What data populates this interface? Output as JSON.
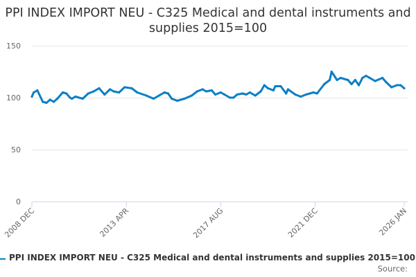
{
  "title": "PPI INDEX IMPORT NEU - C325 Medical and dental instruments and supplies 2015=100",
  "source_label": "Source:",
  "colors": {
    "series": "#0a7fc6",
    "grid": "#e6e6e6",
    "axis_text": "#666666"
  },
  "chart_data": {
    "type": "line",
    "title": "PPI INDEX IMPORT NEU - C325 Medical and dental instruments and supplies 2015=100",
    "xlabel": "",
    "ylabel": "",
    "ylim": [
      0,
      150
    ],
    "xlim": [
      "2008-12",
      "2026-01"
    ],
    "yticks": [
      0,
      50,
      100,
      150
    ],
    "xticks": [
      {
        "date": "2008-12",
        "label": "2008 DEC"
      },
      {
        "date": "2013-04",
        "label": "2013 APR"
      },
      {
        "date": "2017-08",
        "label": "2017 AUG"
      },
      {
        "date": "2021-12",
        "label": "2021 DEC"
      },
      {
        "date": "2026-01",
        "label": "2026 JAN"
      }
    ],
    "grid": "horizontal",
    "legend": "bottom",
    "series": [
      {
        "name": "PPI INDEX IMPORT NEU - C325 Medical and dental instruments and supplies 2015=100",
        "x": [
          "2008-12",
          "2009-01",
          "2009-03",
          "2009-06",
          "2009-08",
          "2009-10",
          "2009-12",
          "2010-02",
          "2010-05",
          "2010-07",
          "2010-09",
          "2010-10",
          "2010-12",
          "2011-04",
          "2011-07",
          "2011-10",
          "2012-01",
          "2012-04",
          "2012-07",
          "2012-09",
          "2012-12",
          "2013-03",
          "2013-07",
          "2013-10",
          "2014-03",
          "2014-07",
          "2014-10",
          "2015-01",
          "2015-03",
          "2015-05",
          "2015-08",
          "2015-12",
          "2016-04",
          "2016-07",
          "2016-10",
          "2016-12",
          "2017-03",
          "2017-05",
          "2017-08",
          "2017-10",
          "2018-01",
          "2018-03",
          "2018-05",
          "2018-08",
          "2018-10",
          "2018-12",
          "2019-03",
          "2019-06",
          "2019-08",
          "2019-10",
          "2020-01",
          "2020-02",
          "2020-05",
          "2020-08",
          "2020-09",
          "2021-01",
          "2021-04",
          "2021-07",
          "2021-11",
          "2022-01",
          "2022-05",
          "2022-08",
          "2022-09",
          "2022-12",
          "2023-02",
          "2023-06",
          "2023-08",
          "2023-10",
          "2023-12",
          "2024-02",
          "2024-04",
          "2024-06",
          "2024-09",
          "2025-01",
          "2025-03",
          "2025-06",
          "2025-09",
          "2025-11",
          "2026-01"
        ],
        "y": [
          101,
          105,
          107,
          96,
          95,
          98,
          96,
          99,
          105,
          104,
          100,
          99,
          101,
          99,
          104,
          106,
          109,
          103,
          108,
          106,
          105,
          110,
          109,
          105,
          102,
          99,
          102,
          105,
          104,
          99,
          97,
          99,
          102,
          106,
          108,
          106,
          107,
          103,
          105,
          103,
          100,
          100,
          103,
          104,
          103,
          105,
          102,
          106,
          112,
          109,
          107,
          111,
          111,
          104,
          108,
          103,
          101,
          103,
          105,
          104,
          113,
          117,
          125,
          117,
          119,
          117,
          113,
          117,
          112,
          119,
          121,
          119,
          116,
          119,
          115,
          110,
          112,
          112,
          109
        ]
      }
    ]
  }
}
